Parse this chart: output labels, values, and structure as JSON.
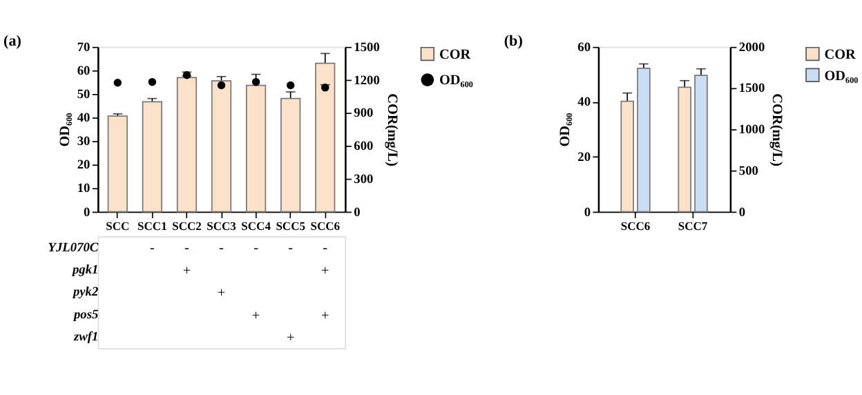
{
  "chart_data": [
    {
      "type": "bar",
      "title": "(a)",
      "categories": [
        "SCC",
        "SCC1",
        "SCC2",
        "SCC3",
        "SCC4",
        "SCC5",
        "SCC6"
      ],
      "ylabel": "OD₆₀₀",
      "y2label": "COR(mg/L)",
      "ylim": [
        0,
        70
      ],
      "yticks": [
        0,
        10,
        20,
        30,
        40,
        50,
        60,
        70
      ],
      "y2lim": [
        0,
        1500
      ],
      "y2ticks": [
        0,
        300,
        600,
        900,
        1200,
        1500
      ],
      "grid": false,
      "legend": "top right",
      "series": [
        {
          "name": "COR",
          "type": "bar",
          "axis": "y2",
          "color": "#fbe1c8",
          "values": [
            870,
            1000,
            1220,
            1190,
            1150,
            1030,
            1350
          ],
          "errors": [
            20,
            30,
            15,
            40,
            100,
            60,
            90
          ]
        },
        {
          "name": "OD₆₀₀",
          "type": "scatter",
          "axis": "y",
          "marker": "circle",
          "color": "#000000",
          "values": [
            54.8,
            55.1,
            58.0,
            53.7,
            55.1,
            53.7,
            52.7
          ],
          "errors": [
            null,
            null,
            1.3,
            null,
            null,
            null,
            1.2
          ]
        }
      ]
    },
    {
      "type": "bar",
      "title": "(b)",
      "categories": [
        "SCC6",
        "SCC7"
      ],
      "ylabel": "OD₆₀₀",
      "y2label": "COR(mg/L)",
      "ylim": [
        0,
        60
      ],
      "yticks": [
        0,
        20,
        40,
        60
      ],
      "y2lim": [
        0,
        2000
      ],
      "y2ticks": [
        0,
        500,
        1000,
        1500,
        2000
      ],
      "grid": false,
      "legend": "top right",
      "series": [
        {
          "name": "COR",
          "type": "bar",
          "axis": "y2",
          "color": "#fbe1c8",
          "values": [
            1340,
            1510
          ],
          "errors": [
            100,
            80
          ]
        },
        {
          "name": "OD₆₀₀",
          "type": "bar",
          "axis": "y",
          "color": "#c9ddf5",
          "values": [
            52.2,
            49.6
          ],
          "errors": [
            1.6,
            2.4
          ]
        }
      ]
    },
    {
      "type": "heatmap",
      "categories": [
        null,
        null,
        null,
        null,
        null,
        null,
        null
      ],
      "y_categories": [
        "YJL070C",
        "pgk1",
        "pyk2",
        "pos5",
        "zwf1"
      ],
      "tick_labels": "y",
      "cells": [
        [
          null,
          null,
          null,
          null,
          null,
          null,
          null
        ],
        [
          null,
          null,
          null,
          null,
          null,
          null,
          null
        ],
        [
          null,
          null,
          null,
          null,
          null,
          null,
          null
        ],
        [
          null,
          null,
          null,
          null,
          null,
          null,
          null
        ],
        [
          null,
          null,
          null,
          null,
          null,
          null,
          null
        ]
      ],
      "cell_labels": [
        [
          null,
          "-",
          "-",
          "-",
          "-",
          "-",
          "-"
        ],
        [
          null,
          null,
          "+",
          null,
          null,
          null,
          "+"
        ],
        [
          null,
          null,
          null,
          "+",
          null,
          null,
          null
        ],
        [
          null,
          null,
          null,
          null,
          "+",
          null,
          "+"
        ],
        [
          null,
          null,
          null,
          null,
          null,
          "+",
          null
        ]
      ]
    }
  ]
}
